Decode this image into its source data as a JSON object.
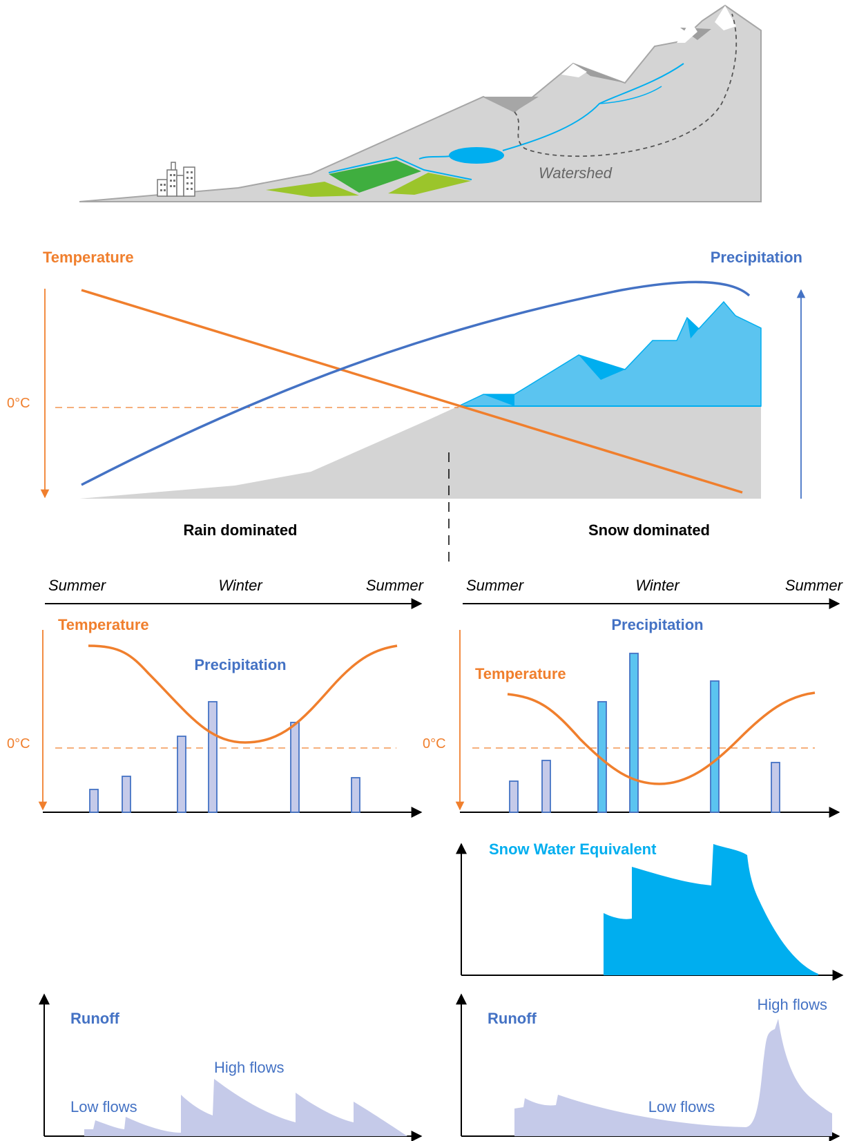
{
  "colors": {
    "temperature": "#F07F2D",
    "precipitation": "#4472C4",
    "snow": "#00AEEF",
    "snow_light": "#5BC4F0",
    "terrain": "#D4D4D4",
    "terrain_edge": "#A6A6A6",
    "field_dark": "#3FAE3F",
    "field_light": "#9BC52B",
    "runoff": "#C5CAE9",
    "bar_fill": "#C5CAE9",
    "bar_edge": "#4472C4"
  },
  "top_panel": {
    "watershed_label": "Watershed",
    "city_icon": "city-icon"
  },
  "elevation_panel": {
    "temperature_label": "Temperature",
    "precipitation_label": "Precipitation",
    "zero_label": "0°C",
    "rain_label": "Rain dominated",
    "snow_label": "Snow dominated"
  },
  "rain_seasonal": {
    "season_labels": [
      "Summer",
      "Winter",
      "Summer"
    ],
    "temperature_label": "Temperature",
    "precipitation_label": "Precipitation",
    "zero_label": "0°C",
    "precip_bars": [
      0.33,
      0.52,
      1.1,
      1.6,
      1.3,
      0.5
    ]
  },
  "snow_seasonal": {
    "season_labels": [
      "Summer",
      "Winter",
      "Summer"
    ],
    "temperature_label": "Temperature",
    "precipitation_label": "Precipitation",
    "zero_label": "0°C",
    "precip_bars": [
      0.45,
      0.75,
      1.6,
      2.3,
      1.9,
      0.72
    ]
  },
  "swe_panel": {
    "label": "Snow Water Equivalent"
  },
  "rain_runoff": {
    "label": "Runoff",
    "low_flows_label": "Low flows",
    "high_flows_label": "High flows"
  },
  "snow_runoff": {
    "label": "Runoff",
    "low_flows_label": "Low flows",
    "high_flows_label": "High flows"
  }
}
